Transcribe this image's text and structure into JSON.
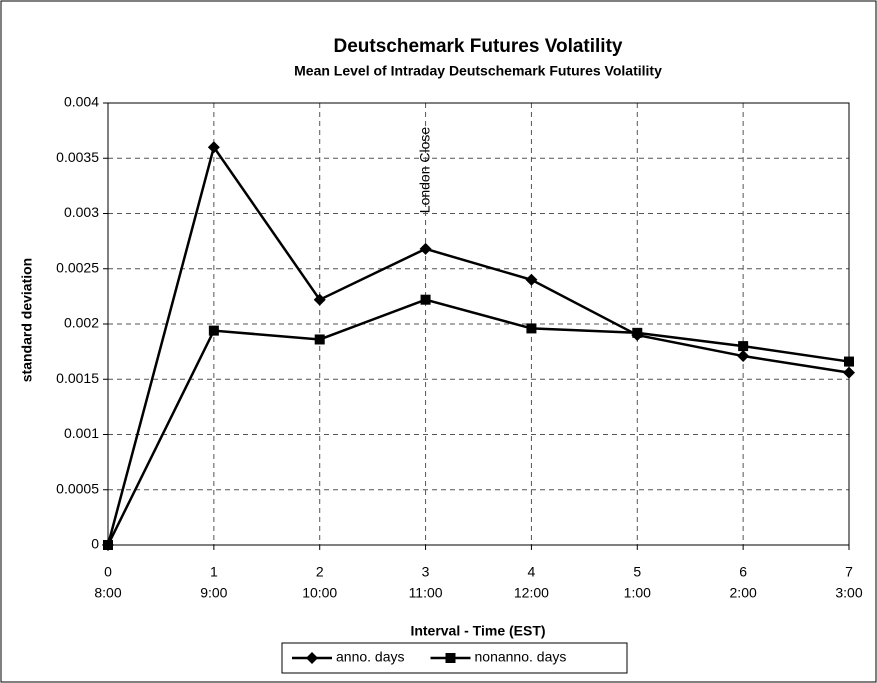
{
  "chart_data": {
    "type": "line",
    "title": "Deutschemark Futures Volatility",
    "subtitle": "Mean Level of Intraday Deutschemark Futures Volatility",
    "x_label": "Interval - Time (EST)",
    "y_label": "standard deviation",
    "x": [
      0,
      1,
      2,
      3,
      4,
      5,
      6,
      7
    ],
    "time_labels": [
      "8:00",
      "9:00",
      "10:00",
      "11:00",
      "12:00",
      "1:00",
      "2:00",
      "3:00"
    ],
    "xlim": [
      0,
      7
    ],
    "xticks": [
      0,
      1,
      2,
      3,
      4,
      5,
      6,
      7
    ],
    "ylim": [
      0,
      0.004
    ],
    "yticks": [
      0,
      0.0005,
      0.001,
      0.0015,
      0.002,
      0.0025,
      0.003,
      0.0035,
      0.004
    ],
    "grid": true,
    "legend": "bottom",
    "series": [
      {
        "name": "anno. days",
        "color": "#000000",
        "marker": "diamond",
        "values": [
          0,
          0.0036,
          0.00222,
          0.00268,
          0.0024,
          0.0019,
          0.00171,
          0.00156
        ]
      },
      {
        "name": "nonanno. days",
        "color": "#000000",
        "marker": "square",
        "values": [
          0,
          0.00194,
          0.00186,
          0.00222,
          0.00196,
          0.00192,
          0.0018,
          0.00166
        ]
      }
    ],
    "annotations": [
      {
        "text": "London Close",
        "x": 3
      }
    ]
  }
}
